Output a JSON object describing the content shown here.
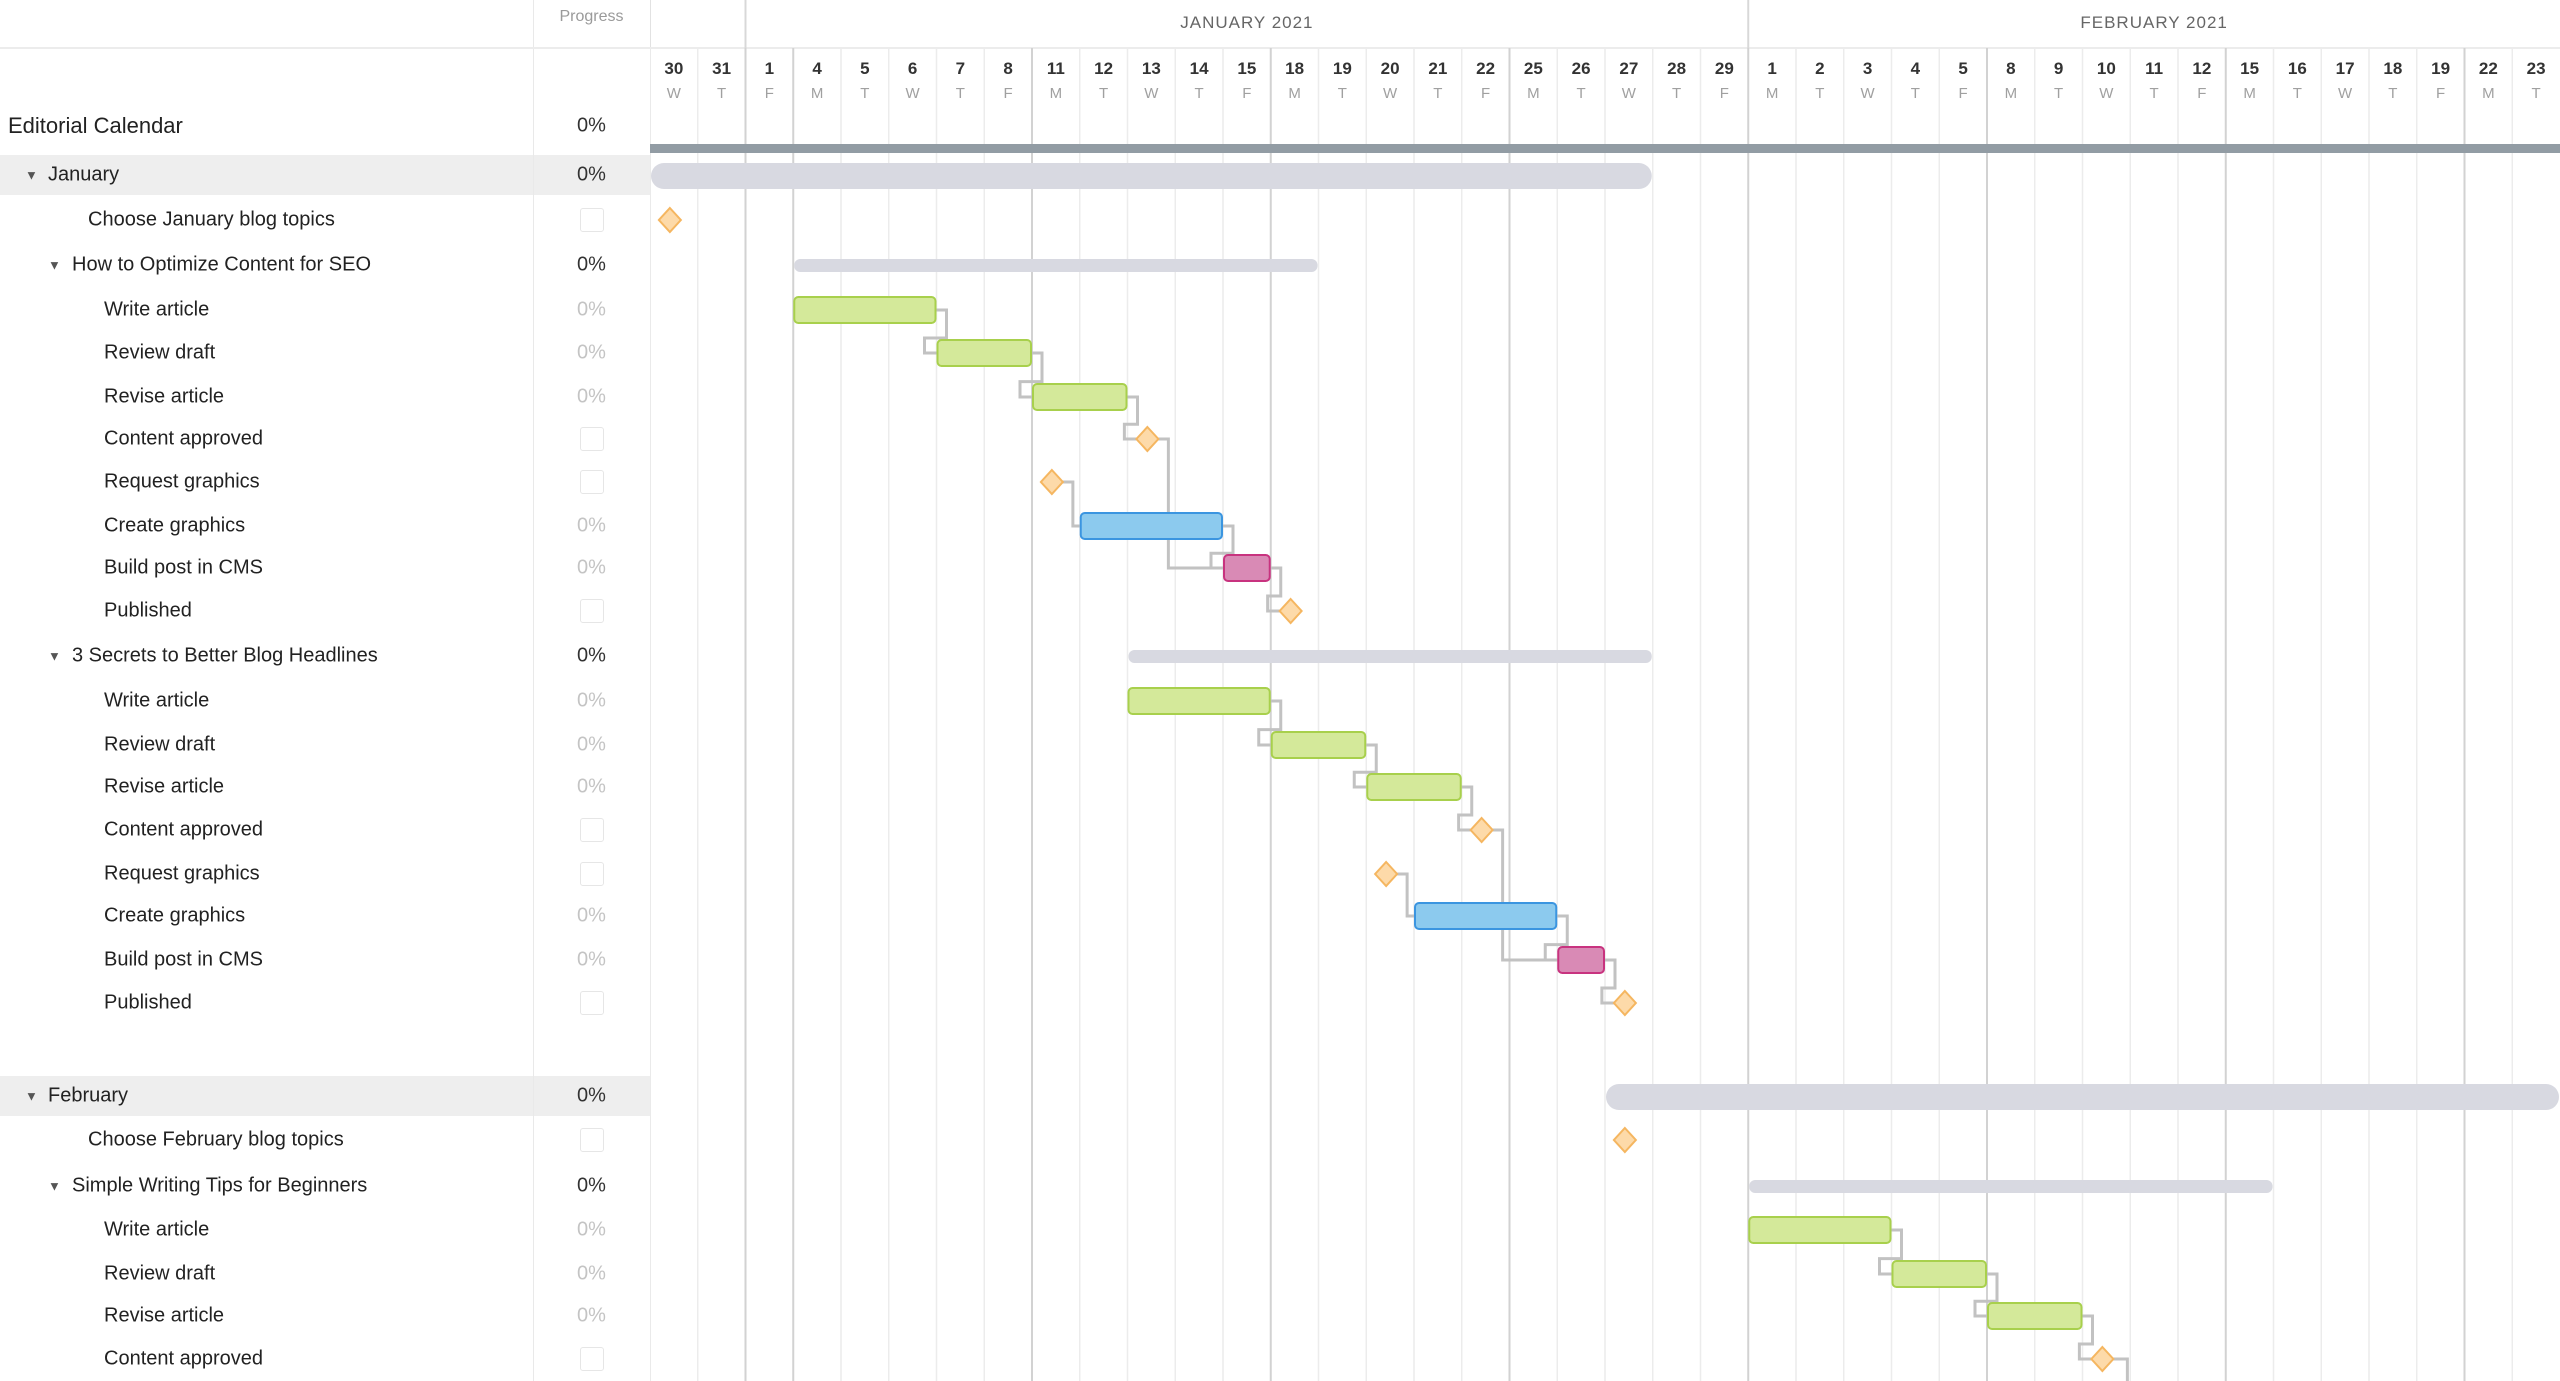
{
  "header": {
    "progress_label": "Progress"
  },
  "months": [
    {
      "label": "JANUARY 2021",
      "start": "2021-01-01",
      "end": "2021-01-29"
    },
    {
      "label": "FEBRUARY 2021",
      "start": "2021-02-01",
      "end": "2021-02-23"
    }
  ],
  "days": [
    {
      "date": "2020-12-30",
      "d": "30",
      "w": "W"
    },
    {
      "date": "2020-12-31",
      "d": "31",
      "w": "T"
    },
    {
      "date": "2021-01-01",
      "d": "1",
      "w": "F"
    },
    {
      "date": "2021-01-04",
      "d": "4",
      "w": "M"
    },
    {
      "date": "2021-01-05",
      "d": "5",
      "w": "T"
    },
    {
      "date": "2021-01-06",
      "d": "6",
      "w": "W"
    },
    {
      "date": "2021-01-07",
      "d": "7",
      "w": "T"
    },
    {
      "date": "2021-01-08",
      "d": "8",
      "w": "F"
    },
    {
      "date": "2021-01-11",
      "d": "11",
      "w": "M"
    },
    {
      "date": "2021-01-12",
      "d": "12",
      "w": "T"
    },
    {
      "date": "2021-01-13",
      "d": "13",
      "w": "W"
    },
    {
      "date": "2021-01-14",
      "d": "14",
      "w": "T"
    },
    {
      "date": "2021-01-15",
      "d": "15",
      "w": "F"
    },
    {
      "date": "2021-01-18",
      "d": "18",
      "w": "M"
    },
    {
      "date": "2021-01-19",
      "d": "19",
      "w": "T"
    },
    {
      "date": "2021-01-20",
      "d": "20",
      "w": "W"
    },
    {
      "date": "2021-01-21",
      "d": "21",
      "w": "T"
    },
    {
      "date": "2021-01-22",
      "d": "22",
      "w": "F"
    },
    {
      "date": "2021-01-25",
      "d": "25",
      "w": "M"
    },
    {
      "date": "2021-01-26",
      "d": "26",
      "w": "T"
    },
    {
      "date": "2021-01-27",
      "d": "27",
      "w": "W"
    },
    {
      "date": "2021-01-28",
      "d": "28",
      "w": "T"
    },
    {
      "date": "2021-01-29",
      "d": "29",
      "w": "F"
    },
    {
      "date": "2021-02-01",
      "d": "1",
      "w": "M"
    },
    {
      "date": "2021-02-02",
      "d": "2",
      "w": "T"
    },
    {
      "date": "2021-02-03",
      "d": "3",
      "w": "W"
    },
    {
      "date": "2021-02-04",
      "d": "4",
      "w": "T"
    },
    {
      "date": "2021-02-05",
      "d": "5",
      "w": "F"
    },
    {
      "date": "2021-02-08",
      "d": "8",
      "w": "M"
    },
    {
      "date": "2021-02-09",
      "d": "9",
      "w": "T"
    },
    {
      "date": "2021-02-10",
      "d": "10",
      "w": "W"
    },
    {
      "date": "2021-02-11",
      "d": "11",
      "w": "T"
    },
    {
      "date": "2021-02-12",
      "d": "12",
      "w": "F"
    },
    {
      "date": "2021-02-15",
      "d": "15",
      "w": "M"
    },
    {
      "date": "2021-02-16",
      "d": "16",
      "w": "T"
    },
    {
      "date": "2021-02-17",
      "d": "17",
      "w": "W"
    },
    {
      "date": "2021-02-18",
      "d": "18",
      "w": "T"
    },
    {
      "date": "2021-02-19",
      "d": "19",
      "w": "F"
    },
    {
      "date": "2021-02-22",
      "d": "22",
      "w": "M"
    },
    {
      "date": "2021-02-23",
      "d": "23",
      "w": "T"
    }
  ],
  "colors": {
    "root_bar": "#929ca4",
    "summary_bar": "#d8d9e1",
    "design": {
      "fill": "#d4e99a",
      "stroke": "#a8d04c"
    },
    "graphics": {
      "fill": "#8ccaee",
      "stroke": "#3b95e0"
    },
    "build": {
      "fill": "#d98ab5",
      "stroke": "#c8337f"
    },
    "milestone": {
      "fill": "#fddaa9",
      "stroke": "#f5b660"
    },
    "connector": "#c2c2c2"
  },
  "rows": [
    {
      "label": "Editorial Calendar",
      "kind": "root",
      "progress": "0%",
      "start": "2020-12-30",
      "end": "2021-02-23"
    },
    {
      "label": "January",
      "kind": "section",
      "progress": "0%",
      "start": "2020-12-30",
      "end": "2021-01-27"
    },
    {
      "label": "Choose January blog topics",
      "kind": "milestone",
      "level": 1,
      "date": "2020-12-30"
    },
    {
      "label": "How to Optimize Content for SEO",
      "kind": "project",
      "progress": "0%",
      "start": "2021-01-04",
      "end": "2021-01-18"
    },
    {
      "label": "Write article",
      "kind": "task",
      "color": "design",
      "progress": "0%",
      "start": "2021-01-04",
      "end": "2021-01-06"
    },
    {
      "label": "Review draft",
      "kind": "task",
      "color": "design",
      "progress": "0%",
      "start": "2021-01-07",
      "end": "2021-01-08"
    },
    {
      "label": "Revise article",
      "kind": "task",
      "color": "design",
      "progress": "0%",
      "start": "2021-01-11",
      "end": "2021-01-12"
    },
    {
      "label": "Content approved",
      "kind": "milestone",
      "level": 2,
      "date": "2021-01-13"
    },
    {
      "label": "Request graphics",
      "kind": "milestone",
      "level": 2,
      "date": "2021-01-11"
    },
    {
      "label": "Create graphics",
      "kind": "task",
      "color": "graphics",
      "progress": "0%",
      "start": "2021-01-12",
      "end": "2021-01-14"
    },
    {
      "label": "Build post in CMS",
      "kind": "task",
      "color": "build",
      "progress": "0%",
      "start": "2021-01-15",
      "end": "2021-01-15"
    },
    {
      "label": "Published",
      "kind": "milestone",
      "level": 2,
      "date": "2021-01-18"
    },
    {
      "label": "3 Secrets to Better Blog Headlines",
      "kind": "project",
      "progress": "0%",
      "start": "2021-01-13",
      "end": "2021-01-27"
    },
    {
      "label": "Write article",
      "kind": "task",
      "color": "design",
      "progress": "0%",
      "start": "2021-01-13",
      "end": "2021-01-15"
    },
    {
      "label": "Review draft",
      "kind": "task",
      "color": "design",
      "progress": "0%",
      "start": "2021-01-18",
      "end": "2021-01-19"
    },
    {
      "label": "Revise article",
      "kind": "task",
      "color": "design",
      "progress": "0%",
      "start": "2021-01-20",
      "end": "2021-01-21"
    },
    {
      "label": "Content approved",
      "kind": "milestone",
      "level": 2,
      "date": "2021-01-22"
    },
    {
      "label": "Request graphics",
      "kind": "milestone",
      "level": 2,
      "date": "2021-01-20"
    },
    {
      "label": "Create graphics",
      "kind": "task",
      "color": "graphics",
      "progress": "0%",
      "start": "2021-01-21",
      "end": "2021-01-25"
    },
    {
      "label": "Build post in CMS",
      "kind": "task",
      "color": "build",
      "progress": "0%",
      "start": "2021-01-26",
      "end": "2021-01-26"
    },
    {
      "label": "Published",
      "kind": "milestone",
      "level": 2,
      "date": "2021-01-27"
    },
    {
      "label": "February",
      "kind": "section",
      "progress": "0%",
      "start": "2021-01-27",
      "end": "2021-02-23"
    },
    {
      "label": "Choose February blog topics",
      "kind": "milestone",
      "level": 1,
      "date": "2021-01-27"
    },
    {
      "label": "Simple Writing Tips for Beginners",
      "kind": "project",
      "progress": "0%",
      "start": "2021-02-01",
      "end": "2021-02-15"
    },
    {
      "label": "Write article",
      "kind": "task",
      "color": "design",
      "progress": "0%",
      "start": "2021-02-01",
      "end": "2021-02-03"
    },
    {
      "label": "Review draft",
      "kind": "task",
      "color": "design",
      "progress": "0%",
      "start": "2021-02-04",
      "end": "2021-02-05"
    },
    {
      "label": "Revise article",
      "kind": "task",
      "color": "design",
      "progress": "0%",
      "start": "2021-02-08",
      "end": "2021-02-09"
    },
    {
      "label": "Content approved",
      "kind": "milestone",
      "level": 2,
      "date": "2021-02-10"
    }
  ],
  "dependencies": [
    [
      4,
      5
    ],
    [
      5,
      6
    ],
    [
      6,
      7
    ],
    [
      7,
      10
    ],
    [
      8,
      9
    ],
    [
      9,
      10
    ],
    [
      10,
      11
    ],
    [
      13,
      14
    ],
    [
      14,
      15
    ],
    [
      15,
      16
    ],
    [
      16,
      19
    ],
    [
      17,
      18
    ],
    [
      18,
      19
    ],
    [
      19,
      20
    ],
    [
      24,
      25
    ],
    [
      25,
      26
    ],
    [
      26,
      27
    ]
  ]
}
